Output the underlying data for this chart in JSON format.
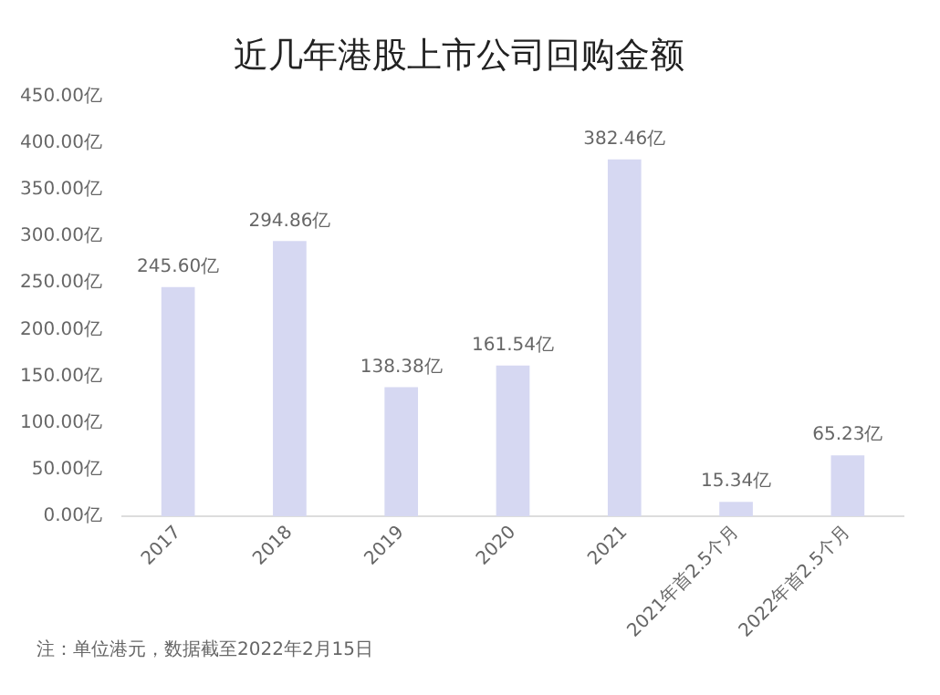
{
  "chart_data": {
    "type": "bar",
    "title": "近几年港股上市公司回购金额",
    "categories": [
      "2017",
      "2018",
      "2019",
      "2020",
      "2021",
      "2021年首2.5个月",
      "2022年首2.5个月"
    ],
    "values": [
      245.6,
      294.86,
      138.38,
      161.54,
      382.46,
      15.34,
      65.23
    ],
    "value_labels": [
      "245.60亿",
      "294.86亿",
      "138.38亿",
      "161.54亿",
      "382.46亿",
      "15.34亿",
      "65.23亿"
    ],
    "color": "#d6d8f2",
    "ylim": [
      0,
      450
    ],
    "yticks": [
      {
        "value": 0,
        "label": "0.00亿"
      },
      {
        "value": 50,
        "label": "50.00亿"
      },
      {
        "value": 100,
        "label": "100.00亿"
      },
      {
        "value": 150,
        "label": "150.00亿"
      },
      {
        "value": 200,
        "label": "200.00亿"
      },
      {
        "value": 250,
        "label": "250.00亿"
      },
      {
        "value": 300,
        "label": "300.00亿"
      },
      {
        "value": 350,
        "label": "350.00亿"
      },
      {
        "value": 400,
        "label": "400.00亿"
      },
      {
        "value": 450,
        "label": "450.00亿"
      }
    ],
    "grid": false,
    "legend": false,
    "annotations": [
      "注：单位港元，数据截至2022年2月15日"
    ]
  }
}
